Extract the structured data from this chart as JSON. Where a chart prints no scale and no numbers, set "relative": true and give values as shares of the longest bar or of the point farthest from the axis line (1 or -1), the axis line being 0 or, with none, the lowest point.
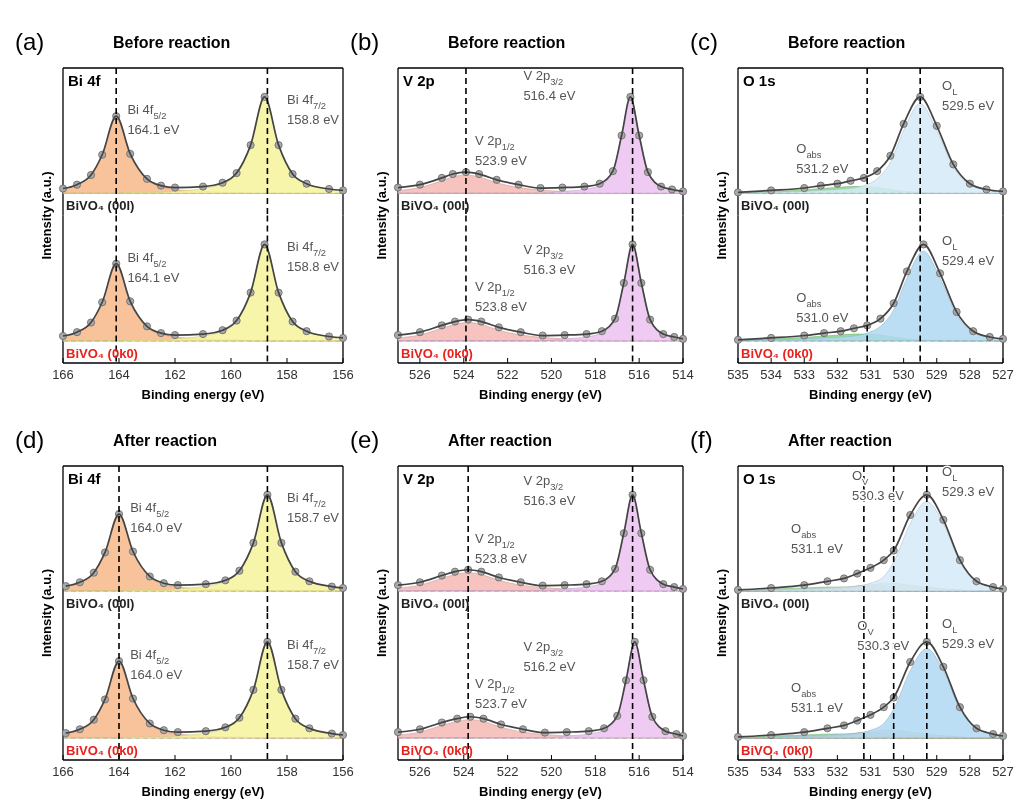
{
  "chart_data": [
    {
      "type": "line",
      "relative": true,
      "title": "Before reaction",
      "ylabel": "Intensity (a.u.)",
      "xlim": [
        166,
        156
      ],
      "tick_labels": false,
      "x": [
        166,
        165.5,
        165,
        164.6,
        164.1,
        163.6,
        163,
        162.5,
        162,
        161,
        160.3,
        159.8,
        159.3,
        158.8,
        158.3,
        157.8,
        157.3,
        156.5,
        156
      ],
      "series": [
        {
          "type": "area",
          "color": "#f7b98a",
          "values": [
            0.05,
            0.09,
            0.19,
            0.4,
            0.8,
            0.4,
            0.14,
            0.07,
            0.04,
            0.02,
            0.01,
            0.01,
            0,
            0,
            0,
            0,
            0,
            0,
            0
          ]
        },
        {
          "type": "area",
          "color": "#f6f39a",
          "values": [
            0,
            0,
            0,
            0,
            0,
            0.01,
            0.01,
            0.01,
            0.02,
            0.05,
            0.1,
            0.2,
            0.5,
            1,
            0.5,
            0.2,
            0.1,
            0.045,
            0.03
          ]
        },
        {
          "type": "scatter",
          "color": "#a9a9a9",
          "marker": "circle",
          "values": [
            0.05,
            0.09,
            0.19,
            0.4,
            0.8,
            0.41,
            0.15,
            0.08,
            0.06,
            0.07,
            0.11,
            0.21,
            0.5,
            1,
            0.5,
            0.2,
            0.1,
            0.045,
            0.03
          ]
        },
        {
          "type": "line",
          "color": "#444444",
          "values": [
            0.05,
            0.09,
            0.19,
            0.4,
            0.8,
            0.41,
            0.15,
            0.08,
            0.06,
            0.07,
            0.11,
            0.21,
            0.5,
            1,
            0.5,
            0.2,
            0.1,
            0.045,
            0.03
          ]
        }
      ],
      "ref_lines": [
        {
          "axis": "x",
          "value": 164.1,
          "line_style": "dashed"
        },
        {
          "axis": "x",
          "value": 158.7,
          "line_style": "dashed"
        }
      ],
      "annotations": [
        "(a)",
        "Bi 4f",
        "BiVO₄ (00l)",
        "Bi 4f$_{5/2}$\n164.1 eV",
        "Bi 4f$_{7/2}$\n158.8 eV"
      ]
    },
    {
      "type": "line",
      "relative": true,
      "xlabel": "Binding energy (eV)",
      "xlim": [
        166,
        156
      ],
      "xticks": [
        166,
        164,
        162,
        160,
        158,
        156
      ],
      "tick_labels": "x",
      "x": [
        166,
        165.5,
        165,
        164.6,
        164.1,
        163.6,
        163,
        162.5,
        162,
        161,
        160.3,
        159.8,
        159.3,
        158.8,
        158.3,
        157.8,
        157.3,
        156.5,
        156
      ],
      "series": [
        {
          "type": "area",
          "color": "#f7b98a",
          "values": [
            0.05,
            0.09,
            0.19,
            0.4,
            0.8,
            0.4,
            0.14,
            0.07,
            0.04,
            0.02,
            0.01,
            0.01,
            0,
            0,
            0,
            0,
            0,
            0,
            0
          ]
        },
        {
          "type": "area",
          "color": "#f6f39a",
          "values": [
            0,
            0,
            0,
            0,
            0,
            0.01,
            0.01,
            0.01,
            0.02,
            0.05,
            0.1,
            0.2,
            0.5,
            1,
            0.5,
            0.2,
            0.1,
            0.045,
            0.03
          ]
        },
        {
          "type": "scatter",
          "color": "#a9a9a9",
          "marker": "circle",
          "values": [
            0.05,
            0.09,
            0.19,
            0.4,
            0.8,
            0.41,
            0.15,
            0.08,
            0.06,
            0.07,
            0.11,
            0.21,
            0.5,
            1,
            0.5,
            0.2,
            0.1,
            0.045,
            0.03
          ]
        },
        {
          "type": "line",
          "color": "#444444",
          "values": [
            0.05,
            0.09,
            0.19,
            0.4,
            0.8,
            0.41,
            0.15,
            0.08,
            0.06,
            0.07,
            0.11,
            0.21,
            0.5,
            1,
            0.5,
            0.2,
            0.1,
            0.045,
            0.03
          ]
        }
      ],
      "ref_lines": [
        {
          "axis": "x",
          "value": 164.1,
          "line_style": "dashed"
        },
        {
          "axis": "x",
          "value": 158.7,
          "line_style": "dashed"
        }
      ],
      "annotations": [
        "BiVO₄ (0k0)",
        "Bi 4f$_{5/2}$\n164.1 eV",
        "Bi 4f$_{7/2}$\n158.8 eV"
      ]
    },
    {
      "type": "line",
      "relative": true,
      "title": "Before reaction",
      "ylabel": "Intensity (a.u.)",
      "xlim": [
        527,
        514
      ],
      "tick_labels": false,
      "x": [
        527,
        526,
        525,
        524.5,
        523.9,
        523.3,
        522.5,
        521.5,
        520.5,
        519.5,
        518.5,
        517.8,
        517.2,
        516.8,
        516.4,
        516,
        515.6,
        515,
        514.5,
        514
      ],
      "series": [
        {
          "type": "area",
          "color": "#f4b8b4",
          "values": [
            0.03,
            0.06,
            0.13,
            0.17,
            0.19,
            0.17,
            0.11,
            0.06,
            0.035,
            0.02,
            0.01,
            0,
            0,
            0,
            0,
            0,
            0,
            0,
            0,
            0
          ]
        },
        {
          "type": "area",
          "color": "#ecc2f2",
          "values": [
            0,
            0,
            0,
            0,
            0,
            0,
            0,
            0,
            0,
            0.02,
            0.04,
            0.08,
            0.22,
            0.6,
            1,
            0.6,
            0.22,
            0.07,
            0.04,
            0.02
          ]
        },
        {
          "type": "scatter",
          "color": "#a9a9a9",
          "marker": "circle",
          "values": [
            0.06,
            0.09,
            0.16,
            0.2,
            0.22,
            0.2,
            0.14,
            0.09,
            0.055,
            0.06,
            0.07,
            0.1,
            0.23,
            0.6,
            1,
            0.6,
            0.22,
            0.07,
            0.04,
            0.02
          ]
        },
        {
          "type": "line",
          "color": "#444444",
          "values": [
            0.06,
            0.09,
            0.16,
            0.2,
            0.22,
            0.2,
            0.14,
            0.09,
            0.055,
            0.06,
            0.07,
            0.1,
            0.23,
            0.6,
            1,
            0.6,
            0.22,
            0.07,
            0.04,
            0.02
          ]
        }
      ],
      "ref_lines": [
        {
          "axis": "x",
          "value": 523.9,
          "line_style": "dashed"
        },
        {
          "axis": "x",
          "value": 516.3,
          "line_style": "dashed"
        }
      ],
      "annotations": [
        "(b)",
        "V 2p",
        "BiVO₄ (00l)",
        "V 2p$_{1/2}$\n523.9 eV",
        "V 2p$_{3/2}$\n516.4 eV"
      ]
    },
    {
      "type": "line",
      "relative": true,
      "xlabel": "Binding energy (eV)",
      "xlim": [
        527,
        514
      ],
      "xticks": [
        526,
        524,
        522,
        520,
        518,
        516,
        514
      ],
      "tick_labels": "x",
      "x": [
        527,
        526,
        525,
        524.4,
        523.8,
        523.2,
        522.4,
        521.4,
        520.4,
        519.4,
        518.4,
        517.7,
        517.1,
        516.7,
        516.3,
        515.9,
        515.5,
        514.9,
        514.4,
        514
      ],
      "series": [
        {
          "type": "area",
          "color": "#f4b8b4",
          "values": [
            0.03,
            0.06,
            0.13,
            0.17,
            0.19,
            0.17,
            0.11,
            0.06,
            0.035,
            0.02,
            0.01,
            0,
            0,
            0,
            0,
            0,
            0,
            0,
            0,
            0
          ]
        },
        {
          "type": "area",
          "color": "#ecc2f2",
          "values": [
            0,
            0,
            0,
            0,
            0,
            0,
            0,
            0,
            0,
            0.02,
            0.04,
            0.08,
            0.22,
            0.6,
            1,
            0.6,
            0.22,
            0.07,
            0.04,
            0.02
          ]
        },
        {
          "type": "scatter",
          "color": "#a9a9a9",
          "marker": "circle",
          "values": [
            0.06,
            0.09,
            0.16,
            0.2,
            0.22,
            0.2,
            0.14,
            0.09,
            0.055,
            0.06,
            0.07,
            0.1,
            0.23,
            0.6,
            1,
            0.6,
            0.22,
            0.07,
            0.04,
            0.02
          ]
        },
        {
          "type": "line",
          "color": "#444444",
          "values": [
            0.06,
            0.09,
            0.16,
            0.2,
            0.22,
            0.2,
            0.14,
            0.09,
            0.055,
            0.06,
            0.07,
            0.1,
            0.23,
            0.6,
            1,
            0.6,
            0.22,
            0.07,
            0.04,
            0.02
          ]
        }
      ],
      "ref_lines": [
        {
          "axis": "x",
          "value": 523.9,
          "line_style": "dashed"
        },
        {
          "axis": "x",
          "value": 516.3,
          "line_style": "dashed"
        }
      ],
      "annotations": [
        "BiVO₄ (0k0)",
        "V 2p$_{1/2}$\n523.8 eV",
        "V 2p$_{3/2}$\n516.3 eV"
      ]
    },
    {
      "type": "line",
      "relative": true,
      "title": "Before reaction",
      "ylabel": "Intensity (a.u.)",
      "xlim": [
        535,
        527
      ],
      "tick_labels": false,
      "x": [
        535,
        534,
        533,
        532.5,
        532,
        531.6,
        531.2,
        530.8,
        530.4,
        530,
        529.5,
        529,
        528.5,
        528,
        527.5,
        527
      ],
      "series": [
        {
          "type": "area",
          "color": "#86d886",
          "values": [
            0.01,
            0.02,
            0.035,
            0.05,
            0.06,
            0.07,
            0.07,
            0.06,
            0.04,
            0.02,
            0.01,
            0,
            0,
            0,
            0,
            0
          ]
        },
        {
          "type": "area",
          "color": "#d4eaf8",
          "values": [
            0,
            0.01,
            0.02,
            0.03,
            0.04,
            0.05,
            0.08,
            0.15,
            0.32,
            0.65,
            0.93,
            0.65,
            0.27,
            0.09,
            0.035,
            0.015
          ]
        },
        {
          "type": "scatter",
          "color": "#a9a9a9",
          "marker": "circle",
          "values": [
            0.01,
            0.03,
            0.055,
            0.08,
            0.1,
            0.13,
            0.16,
            0.23,
            0.39,
            0.72,
            1,
            0.7,
            0.3,
            0.1,
            0.04,
            0.02
          ]
        },
        {
          "type": "line",
          "color": "#444444",
          "values": [
            0.01,
            0.03,
            0.055,
            0.08,
            0.1,
            0.13,
            0.16,
            0.23,
            0.39,
            0.72,
            1,
            0.7,
            0.3,
            0.1,
            0.04,
            0.02
          ]
        }
      ],
      "ref_lines": [
        {
          "axis": "x",
          "value": 531.1,
          "line_style": "dashed"
        },
        {
          "axis": "x",
          "value": 529.5,
          "line_style": "dashed"
        }
      ],
      "annotations": [
        "(c)",
        "O 1s",
        "BiVO₄ (00l)",
        "O$_{abs}$\n531.2 eV",
        "O$_{L}$\n529.5 eV"
      ]
    },
    {
      "type": "line",
      "relative": true,
      "xlabel": "Binding energy (eV)",
      "xlim": [
        535,
        527
      ],
      "xticks": [
        535,
        534,
        533,
        532,
        531,
        530,
        529,
        528,
        527
      ],
      "tick_labels": "x",
      "x": [
        535,
        534,
        533,
        532.4,
        531.9,
        531.5,
        531.1,
        530.7,
        530.3,
        529.9,
        529.4,
        528.9,
        528.4,
        527.9,
        527.4,
        527
      ],
      "series": [
        {
          "type": "area",
          "color": "#86d886",
          "values": [
            0.01,
            0.02,
            0.035,
            0.05,
            0.06,
            0.07,
            0.07,
            0.06,
            0.04,
            0.02,
            0.01,
            0,
            0,
            0,
            0,
            0
          ]
        },
        {
          "type": "area",
          "color": "#b0d8f2",
          "values": [
            0,
            0.01,
            0.02,
            0.03,
            0.04,
            0.05,
            0.08,
            0.15,
            0.32,
            0.65,
            0.93,
            0.65,
            0.27,
            0.09,
            0.035,
            0.015
          ]
        },
        {
          "type": "scatter",
          "color": "#a9a9a9",
          "marker": "circle",
          "values": [
            0.01,
            0.03,
            0.055,
            0.08,
            0.1,
            0.13,
            0.16,
            0.23,
            0.39,
            0.72,
            1,
            0.7,
            0.3,
            0.1,
            0.04,
            0.02
          ]
        },
        {
          "type": "line",
          "color": "#444444",
          "values": [
            0.01,
            0.03,
            0.055,
            0.08,
            0.1,
            0.13,
            0.16,
            0.23,
            0.39,
            0.72,
            1,
            0.7,
            0.3,
            0.1,
            0.04,
            0.02
          ]
        }
      ],
      "ref_lines": [
        {
          "axis": "x",
          "value": 531.1,
          "line_style": "dashed"
        },
        {
          "axis": "x",
          "value": 529.5,
          "line_style": "dashed"
        }
      ],
      "annotations": [
        "BiVO₄ (0k0)",
        "O$_{abs}$\n531.0 eV",
        "O$_{L}$\n529.4 eV"
      ]
    },
    {
      "type": "line",
      "relative": true,
      "title": "After reaction",
      "ylabel": "Intensity (a.u.)",
      "xlim": [
        166,
        156
      ],
      "tick_labels": false,
      "x": [
        165.9,
        165.4,
        164.9,
        164.5,
        164,
        163.5,
        162.9,
        162.4,
        161.9,
        160.9,
        160.2,
        159.7,
        159.2,
        158.7,
        158.2,
        157.7,
        157.2,
        156.4,
        156
      ],
      "series": [
        {
          "type": "area",
          "color": "#f7b98a",
          "values": [
            0.05,
            0.09,
            0.19,
            0.4,
            0.8,
            0.4,
            0.14,
            0.07,
            0.04,
            0.02,
            0.01,
            0.01,
            0,
            0,
            0,
            0,
            0,
            0,
            0
          ]
        },
        {
          "type": "area",
          "color": "#f6f39a",
          "values": [
            0,
            0,
            0,
            0,
            0,
            0.01,
            0.01,
            0.01,
            0.02,
            0.05,
            0.1,
            0.2,
            0.5,
            1,
            0.5,
            0.2,
            0.1,
            0.045,
            0.03
          ]
        },
        {
          "type": "scatter",
          "color": "#a9a9a9",
          "marker": "circle",
          "values": [
            0.05,
            0.09,
            0.19,
            0.4,
            0.8,
            0.41,
            0.15,
            0.08,
            0.06,
            0.07,
            0.11,
            0.21,
            0.5,
            1,
            0.5,
            0.2,
            0.1,
            0.045,
            0.03
          ]
        },
        {
          "type": "line",
          "color": "#444444",
          "values": [
            0.05,
            0.09,
            0.19,
            0.4,
            0.8,
            0.41,
            0.15,
            0.08,
            0.06,
            0.07,
            0.11,
            0.21,
            0.5,
            1,
            0.5,
            0.2,
            0.1,
            0.045,
            0.03
          ]
        }
      ],
      "ref_lines": [
        {
          "axis": "x",
          "value": 164.0,
          "line_style": "dashed"
        },
        {
          "axis": "x",
          "value": 158.7,
          "line_style": "dashed"
        }
      ],
      "annotations": [
        "(d)",
        "Bi 4f",
        "BiVO₄ (00l)",
        "Bi 4f$_{5/2}$\n164.0 eV",
        "Bi 4f$_{7/2}$\n158.7 eV"
      ]
    },
    {
      "type": "line",
      "relative": true,
      "xlabel": "Binding energy (eV)",
      "xlim": [
        166,
        156
      ],
      "xticks": [
        166,
        164,
        162,
        160,
        158,
        156
      ],
      "tick_labels": "x",
      "x": [
        165.9,
        165.4,
        164.9,
        164.5,
        164,
        163.5,
        162.9,
        162.4,
        161.9,
        160.9,
        160.2,
        159.7,
        159.2,
        158.7,
        158.2,
        157.7,
        157.2,
        156.4,
        156
      ],
      "series": [
        {
          "type": "area",
          "color": "#f7b98a",
          "values": [
            0.05,
            0.09,
            0.19,
            0.4,
            0.8,
            0.4,
            0.14,
            0.07,
            0.04,
            0.02,
            0.01,
            0.01,
            0,
            0,
            0,
            0,
            0,
            0,
            0
          ]
        },
        {
          "type": "area",
          "color": "#f6f39a",
          "values": [
            0,
            0,
            0,
            0,
            0,
            0.01,
            0.01,
            0.01,
            0.02,
            0.05,
            0.1,
            0.2,
            0.5,
            1,
            0.5,
            0.2,
            0.1,
            0.045,
            0.03
          ]
        },
        {
          "type": "scatter",
          "color": "#a9a9a9",
          "marker": "circle",
          "values": [
            0.05,
            0.09,
            0.19,
            0.4,
            0.8,
            0.41,
            0.15,
            0.08,
            0.06,
            0.07,
            0.11,
            0.21,
            0.5,
            1,
            0.5,
            0.2,
            0.1,
            0.045,
            0.03
          ]
        },
        {
          "type": "line",
          "color": "#444444",
          "values": [
            0.05,
            0.09,
            0.19,
            0.4,
            0.8,
            0.41,
            0.15,
            0.08,
            0.06,
            0.07,
            0.11,
            0.21,
            0.5,
            1,
            0.5,
            0.2,
            0.1,
            0.045,
            0.03
          ]
        }
      ],
      "ref_lines": [
        {
          "axis": "x",
          "value": 164.0,
          "line_style": "dashed"
        },
        {
          "axis": "x",
          "value": 158.7,
          "line_style": "dashed"
        }
      ],
      "annotations": [
        "BiVO₄ (0k0)",
        "Bi 4f$_{5/2}$\n164.0 eV",
        "Bi 4f$_{7/2}$\n158.7 eV"
      ]
    },
    {
      "type": "line",
      "relative": true,
      "title": "After reaction",
      "ylabel": "Intensity (a.u.)",
      "xlim": [
        527,
        514
      ],
      "tick_labels": false,
      "x": [
        527,
        526,
        525,
        524.4,
        523.8,
        523.2,
        522.4,
        521.4,
        520.4,
        519.4,
        518.4,
        517.7,
        517.1,
        516.7,
        516.3,
        515.9,
        515.5,
        514.9,
        514.4,
        514
      ],
      "series": [
        {
          "type": "area",
          "color": "#f4b8b4",
          "values": [
            0.03,
            0.06,
            0.13,
            0.17,
            0.19,
            0.17,
            0.11,
            0.06,
            0.035,
            0.02,
            0.01,
            0,
            0,
            0,
            0,
            0,
            0,
            0,
            0,
            0
          ]
        },
        {
          "type": "area",
          "color": "#ecc2f2",
          "values": [
            0,
            0,
            0,
            0,
            0,
            0,
            0,
            0,
            0,
            0.02,
            0.04,
            0.08,
            0.22,
            0.6,
            1,
            0.6,
            0.22,
            0.07,
            0.04,
            0.02
          ]
        },
        {
          "type": "scatter",
          "color": "#a9a9a9",
          "marker": "circle",
          "values": [
            0.06,
            0.09,
            0.16,
            0.2,
            0.22,
            0.2,
            0.14,
            0.09,
            0.055,
            0.06,
            0.07,
            0.1,
            0.23,
            0.6,
            1,
            0.6,
            0.22,
            0.07,
            0.04,
            0.02
          ]
        },
        {
          "type": "line",
          "color": "#444444",
          "values": [
            0.06,
            0.09,
            0.16,
            0.2,
            0.22,
            0.2,
            0.14,
            0.09,
            0.055,
            0.06,
            0.07,
            0.1,
            0.23,
            0.6,
            1,
            0.6,
            0.22,
            0.07,
            0.04,
            0.02
          ]
        }
      ],
      "ref_lines": [
        {
          "axis": "x",
          "value": 523.8,
          "line_style": "dashed"
        },
        {
          "axis": "x",
          "value": 516.3,
          "line_style": "dashed"
        }
      ],
      "annotations": [
        "(e)",
        "V 2p",
        "BiVO₄ (00l)",
        "V 2p$_{1/2}$\n523.8 eV",
        "V 2p$_{3/2}$\n516.3 eV"
      ]
    },
    {
      "type": "line",
      "relative": true,
      "xlabel": "Binding energy (eV)",
      "xlim": [
        527,
        514
      ],
      "xticks": [
        526,
        524,
        522,
        520,
        518,
        516,
        514
      ],
      "tick_labels": "x",
      "x": [
        527,
        526,
        525,
        524.3,
        523.7,
        523.1,
        522.3,
        521.3,
        520.3,
        519.3,
        518.3,
        517.6,
        517,
        516.6,
        516.2,
        515.8,
        515.4,
        514.8,
        514.3,
        514
      ],
      "series": [
        {
          "type": "area",
          "color": "#f4b8b4",
          "values": [
            0.03,
            0.06,
            0.13,
            0.17,
            0.19,
            0.17,
            0.11,
            0.06,
            0.035,
            0.02,
            0.01,
            0,
            0,
            0,
            0,
            0,
            0,
            0,
            0,
            0
          ]
        },
        {
          "type": "area",
          "color": "#ecc2f2",
          "values": [
            0,
            0,
            0,
            0,
            0,
            0,
            0,
            0,
            0,
            0.02,
            0.04,
            0.08,
            0.22,
            0.6,
            1,
            0.6,
            0.22,
            0.07,
            0.04,
            0.02
          ]
        },
        {
          "type": "scatter",
          "color": "#a9a9a9",
          "marker": "circle",
          "values": [
            0.06,
            0.09,
            0.16,
            0.2,
            0.22,
            0.2,
            0.14,
            0.09,
            0.055,
            0.06,
            0.07,
            0.1,
            0.23,
            0.6,
            1,
            0.6,
            0.22,
            0.07,
            0.04,
            0.02
          ]
        },
        {
          "type": "line",
          "color": "#444444",
          "values": [
            0.06,
            0.09,
            0.16,
            0.2,
            0.22,
            0.2,
            0.14,
            0.09,
            0.055,
            0.06,
            0.07,
            0.1,
            0.23,
            0.6,
            1,
            0.6,
            0.22,
            0.07,
            0.04,
            0.02
          ]
        }
      ],
      "ref_lines": [
        {
          "axis": "x",
          "value": 523.8,
          "line_style": "dashed"
        },
        {
          "axis": "x",
          "value": 516.3,
          "line_style": "dashed"
        }
      ],
      "annotations": [
        "BiVO₄ (0k0)",
        "V 2p$_{1/2}$\n523.7 eV",
        "V 2p$_{3/2}$\n516.2 eV"
      ]
    },
    {
      "type": "line",
      "relative": true,
      "title": "After reaction",
      "ylabel": "Intensity (a.u.)",
      "xlim": [
        535,
        527
      ],
      "tick_labels": false,
      "x": [
        535,
        534,
        533,
        532.3,
        531.8,
        531.4,
        531,
        530.6,
        530.3,
        529.8,
        529.3,
        528.8,
        528.3,
        527.8,
        527.3,
        527
      ],
      "series": [
        {
          "type": "area",
          "color": "#8fdc8f",
          "values": [
            0.01,
            0.02,
            0.03,
            0.04,
            0.04,
            0.04,
            0.04,
            0.04,
            0.04,
            0.03,
            0.03,
            0.02,
            0.01,
            0,
            0,
            0
          ]
        },
        {
          "type": "area",
          "color": "#b88a35",
          "values": [
            0,
            0,
            0.01,
            0.02,
            0.03,
            0.05,
            0.06,
            0.05,
            0,
            0,
            0,
            0,
            0,
            0,
            0,
            0
          ]
        },
        {
          "type": "area",
          "color": "#cdd0bf",
          "values": [
            0,
            0,
            0,
            0.01,
            0.02,
            0.04,
            0.06,
            0.08,
            0.08,
            0.06,
            0.04,
            0.02,
            0.01,
            0,
            0,
            0
          ]
        },
        {
          "type": "area",
          "color": "#d4eaf8",
          "values": [
            0,
            0.01,
            0.02,
            0.03,
            0.04,
            0.05,
            0.08,
            0.15,
            0.3,
            0.7,
            0.93,
            0.7,
            0.3,
            0.1,
            0.04,
            0.02
          ]
        },
        {
          "type": "scatter",
          "color": "#a9a9a9",
          "marker": "circle",
          "values": [
            0.01,
            0.03,
            0.06,
            0.1,
            0.13,
            0.18,
            0.24,
            0.32,
            0.42,
            0.79,
            1,
            0.74,
            0.32,
            0.1,
            0.04,
            0.02
          ]
        },
        {
          "type": "line",
          "color": "#444444",
          "values": [
            0.01,
            0.03,
            0.06,
            0.1,
            0.13,
            0.18,
            0.24,
            0.32,
            0.42,
            0.79,
            1,
            0.74,
            0.32,
            0.1,
            0.04,
            0.02
          ]
        }
      ],
      "ref_lines": [
        {
          "axis": "x",
          "value": 531.2,
          "line_style": "dashed"
        },
        {
          "axis": "x",
          "value": 530.3,
          "line_style": "dashed"
        },
        {
          "axis": "x",
          "value": 529.3,
          "line_style": "dashed"
        }
      ],
      "annotations": [
        "(f)",
        "O 1s",
        "BiVO₄ (00l)",
        "O$_{abs}$\n531.1 eV",
        "O$_{V}$\n530.3 eV",
        "O$_{L}$\n529.3 eV"
      ]
    },
    {
      "type": "line",
      "relative": true,
      "xlabel": "Binding energy (eV)",
      "xlim": [
        535,
        527
      ],
      "xticks": [
        535,
        534,
        533,
        532,
        531,
        530,
        529,
        528,
        527
      ],
      "tick_labels": "x",
      "x": [
        535,
        534,
        533,
        532.3,
        531.8,
        531.4,
        531,
        530.6,
        530.3,
        529.8,
        529.3,
        528.8,
        528.3,
        527.8,
        527.3,
        527
      ],
      "series": [
        {
          "type": "area",
          "color": "#8fdc8f",
          "values": [
            0.01,
            0.02,
            0.03,
            0.04,
            0.04,
            0.04,
            0.04,
            0.04,
            0.04,
            0.03,
            0.03,
            0.02,
            0.01,
            0,
            0,
            0
          ]
        },
        {
          "type": "area",
          "color": "#b88a35",
          "values": [
            0,
            0,
            0.01,
            0.02,
            0.03,
            0.05,
            0.06,
            0.05,
            0,
            0,
            0,
            0,
            0,
            0,
            0,
            0
          ]
        },
        {
          "type": "area",
          "color": "#cdd0bf",
          "values": [
            0,
            0,
            0,
            0.01,
            0.02,
            0.04,
            0.06,
            0.08,
            0.08,
            0.06,
            0.04,
            0.02,
            0.01,
            0,
            0,
            0
          ]
        },
        {
          "type": "area",
          "color": "#b0d8f2",
          "values": [
            0,
            0.01,
            0.02,
            0.03,
            0.04,
            0.05,
            0.08,
            0.15,
            0.3,
            0.7,
            0.93,
            0.7,
            0.3,
            0.1,
            0.04,
            0.02
          ]
        },
        {
          "type": "scatter",
          "color": "#a9a9a9",
          "marker": "circle",
          "values": [
            0.01,
            0.03,
            0.06,
            0.1,
            0.13,
            0.18,
            0.24,
            0.32,
            0.42,
            0.79,
            1,
            0.74,
            0.32,
            0.1,
            0.04,
            0.02
          ]
        },
        {
          "type": "line",
          "color": "#444444",
          "values": [
            0.01,
            0.03,
            0.06,
            0.1,
            0.13,
            0.18,
            0.24,
            0.32,
            0.42,
            0.79,
            1,
            0.74,
            0.32,
            0.1,
            0.04,
            0.02
          ]
        }
      ],
      "ref_lines": [
        {
          "axis": "x",
          "value": 531.2,
          "line_style": "dashed"
        },
        {
          "axis": "x",
          "value": 530.3,
          "line_style": "dashed"
        },
        {
          "axis": "x",
          "value": 529.3,
          "line_style": "dashed"
        }
      ],
      "annotations": [
        "BiVO₄ (0k0)",
        "O$_{abs}$\n531.1 eV",
        "O$_{V}$\n530.3 eV",
        "O$_{L}$\n529.3 eV"
      ]
    }
  ]
}
